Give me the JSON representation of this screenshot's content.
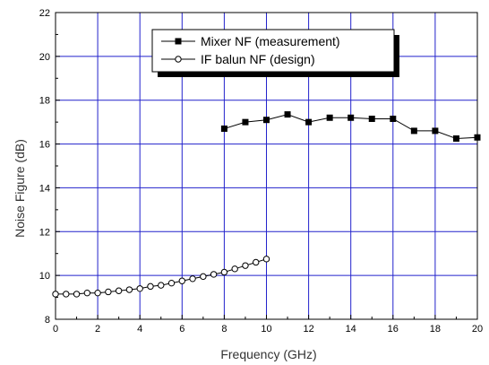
{
  "chart_data": {
    "type": "line",
    "title": "",
    "xlabel": "Frequency (GHz)",
    "ylabel": "Noise Figure (dB)",
    "xlim": [
      0,
      20
    ],
    "ylim": [
      8,
      22
    ],
    "xticks": [
      0,
      2,
      4,
      6,
      8,
      10,
      12,
      14,
      16,
      18,
      20
    ],
    "yticks": [
      8,
      10,
      12,
      14,
      16,
      18,
      20,
      22
    ],
    "grid": true,
    "grid_color": "#2222cc",
    "legend_position": "top-right",
    "series": [
      {
        "name": "Mixer NF (measurement)",
        "marker": "filled-square",
        "color": "#000000",
        "x": [
          8,
          9,
          10,
          11,
          12,
          13,
          14,
          15,
          16,
          17,
          18,
          19,
          20
        ],
        "y": [
          16.7,
          17.0,
          17.1,
          17.35,
          17.0,
          17.2,
          17.2,
          17.15,
          17.15,
          16.6,
          16.6,
          16.25,
          16.3
        ]
      },
      {
        "name": "IF balun NF (design)",
        "marker": "open-circle",
        "color": "#000000",
        "x": [
          0,
          0.5,
          1,
          1.5,
          2,
          2.5,
          3,
          3.5,
          4,
          4.5,
          5,
          5.5,
          6,
          6.5,
          7,
          7.5,
          8,
          8.5,
          9,
          9.5,
          10
        ],
        "y": [
          9.15,
          9.15,
          9.15,
          9.2,
          9.2,
          9.25,
          9.3,
          9.35,
          9.4,
          9.5,
          9.55,
          9.65,
          9.75,
          9.85,
          9.95,
          10.05,
          10.15,
          10.3,
          10.45,
          10.6,
          10.75
        ]
      }
    ]
  }
}
